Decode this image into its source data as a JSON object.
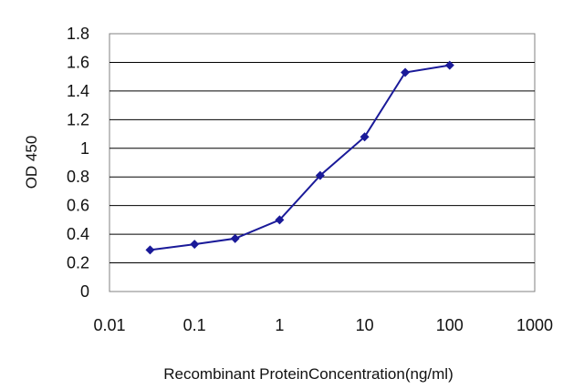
{
  "chart_data": {
    "type": "scatter",
    "title": "",
    "xlabel": "Recombinant ProteinConcentration(ng/ml)",
    "ylabel": "OD 450",
    "x_scale": "log",
    "xlim": [
      0.01,
      1000
    ],
    "ylim": [
      0,
      1.8
    ],
    "x_ticks": [
      "0.01",
      "0.1",
      "1",
      "10",
      "100",
      "1000"
    ],
    "y_ticks": [
      "0",
      "0.2",
      "0.4",
      "0.6",
      "0.8",
      "1",
      "1.2",
      "1.4",
      "1.6",
      "1.8"
    ],
    "grid": "horizontal",
    "legend": "none",
    "series": [
      {
        "x": [
          0.03,
          0.1,
          0.3,
          1,
          3,
          10,
          30,
          100
        ],
        "y": [
          0.29,
          0.33,
          0.37,
          0.5,
          0.81,
          1.08,
          1.53,
          1.58
        ],
        "color": "#1a1a99",
        "marker": "diamond",
        "line": "connected"
      }
    ]
  }
}
